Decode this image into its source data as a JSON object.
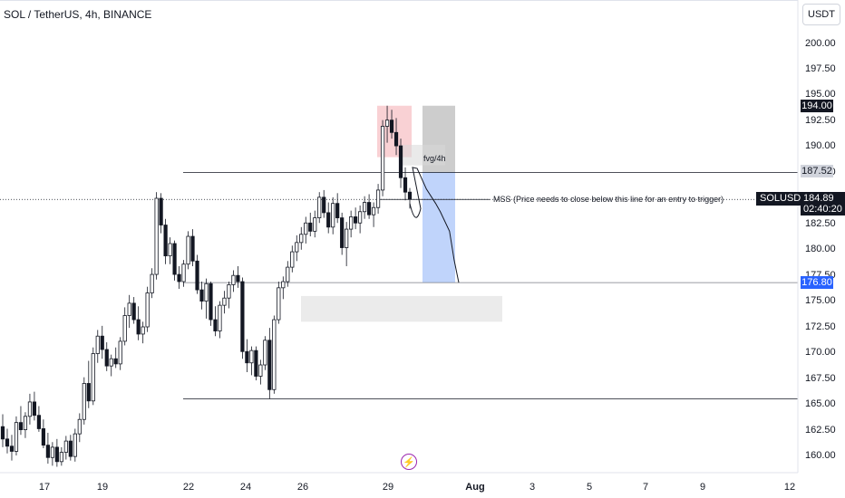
{
  "header": {
    "title": "SOL / TetherUS, 4h, BINANCE",
    "unit_button": "USDT"
  },
  "price_axis": {
    "ticks": [
      "200.00",
      "197.50",
      "195.00",
      "192.50",
      "190.00",
      "187.50",
      "185.00",
      "182.50",
      "180.00",
      "177.50",
      "175.00",
      "172.50",
      "170.00",
      "167.50",
      "165.00",
      "162.50",
      "160.00"
    ],
    "tag_194": "194.00",
    "tag_18752": "187.52",
    "tag_17680": "176.80",
    "current_symbol": "SOLUSDT",
    "current_price": "184.89",
    "countdown": "02:40:20"
  },
  "time_axis": {
    "ticks": [
      "17",
      "19",
      "22",
      "24",
      "26",
      "29",
      "Aug",
      "3",
      "5",
      "7",
      "9",
      "12"
    ]
  },
  "annotations": {
    "fvg": "fvg/4h",
    "mss": "MSS (Price needs to close below this line for an entry to trigger)"
  },
  "colors": {
    "up": "#ffffff",
    "down": "#131722",
    "red_zone": "#f8c9cd",
    "stop_zone": "#c8c8c8",
    "target_zone": "#b9cffb",
    "target_tag": "#2962ff",
    "gray_zone": "#ebebeb",
    "line": "#131722"
  },
  "chart_data": {
    "type": "candlestick",
    "symbol": "SOL / TetherUS",
    "interval": "4h",
    "exchange": "BINANCE",
    "ylim": [
      158.5,
      201.5
    ],
    "last_price": 184.89,
    "levels": [
      187.52,
      184.89,
      176.8,
      165.5
    ],
    "candles_ohlc": [
      [
        162.8,
        164.0,
        160.8,
        161.6
      ],
      [
        161.6,
        162.6,
        160.2,
        160.9
      ],
      [
        160.9,
        162.0,
        159.5,
        160.4
      ],
      [
        160.4,
        163.8,
        160.0,
        163.2
      ],
      [
        163.2,
        164.8,
        162.0,
        162.5
      ],
      [
        162.5,
        164.2,
        161.7,
        163.8
      ],
      [
        163.8,
        166.0,
        163.0,
        165.2
      ],
      [
        165.2,
        166.2,
        163.4,
        163.9
      ],
      [
        163.9,
        164.8,
        162.3,
        162.6
      ],
      [
        162.6,
        163.5,
        160.7,
        161.0
      ],
      [
        161.0,
        162.2,
        159.2,
        159.8
      ],
      [
        159.8,
        161.3,
        159.0,
        160.8
      ],
      [
        160.8,
        161.6,
        158.9,
        159.4
      ],
      [
        159.4,
        160.8,
        159.0,
        160.3
      ],
      [
        160.3,
        161.9,
        159.6,
        161.4
      ],
      [
        161.4,
        162.0,
        159.5,
        159.9
      ],
      [
        159.9,
        162.6,
        159.4,
        162.1
      ],
      [
        162.1,
        164.1,
        161.3,
        163.5
      ],
      [
        163.5,
        167.6,
        163.0,
        167.0
      ],
      [
        167.0,
        169.2,
        164.6,
        165.3
      ],
      [
        165.3,
        170.5,
        164.9,
        169.9
      ],
      [
        169.9,
        172.2,
        169.0,
        171.6
      ],
      [
        171.6,
        172.6,
        169.4,
        170.3
      ],
      [
        170.3,
        171.0,
        168.2,
        168.7
      ],
      [
        168.7,
        169.8,
        167.7,
        169.4
      ],
      [
        169.4,
        170.5,
        168.5,
        168.9
      ],
      [
        168.9,
        171.5,
        168.3,
        171.1
      ],
      [
        171.1,
        174.4,
        170.7,
        173.6
      ],
      [
        173.6,
        175.6,
        172.4,
        174.8
      ],
      [
        174.8,
        175.4,
        172.8,
        173.2
      ],
      [
        173.2,
        174.5,
        171.2,
        171.8
      ],
      [
        171.8,
        173.0,
        170.9,
        172.5
      ],
      [
        172.5,
        176.4,
        172.0,
        175.8
      ],
      [
        175.8,
        178.2,
        175.3,
        177.6
      ],
      [
        177.6,
        185.6,
        177.1,
        185.0
      ],
      [
        185.0,
        185.5,
        181.6,
        182.4
      ],
      [
        182.4,
        183.0,
        178.6,
        179.4
      ],
      [
        179.4,
        181.2,
        178.6,
        180.6
      ],
      [
        180.6,
        180.9,
        177.0,
        177.6
      ],
      [
        177.6,
        178.4,
        176.2,
        176.9
      ],
      [
        176.9,
        179.0,
        176.4,
        178.6
      ],
      [
        178.6,
        181.8,
        178.1,
        181.3
      ],
      [
        181.3,
        182.0,
        178.4,
        178.9
      ],
      [
        178.9,
        179.5,
        175.7,
        176.1
      ],
      [
        176.1,
        176.9,
        174.2,
        175.0
      ],
      [
        175.0,
        177.2,
        173.3,
        176.7
      ],
      [
        176.7,
        176.9,
        172.6,
        173.2
      ],
      [
        173.2,
        174.5,
        171.6,
        172.1
      ],
      [
        172.1,
        175.0,
        171.4,
        174.6
      ],
      [
        174.6,
        176.0,
        173.8,
        175.3
      ],
      [
        175.3,
        176.9,
        174.3,
        176.6
      ],
      [
        176.6,
        178.0,
        175.9,
        177.5
      ],
      [
        177.5,
        178.4,
        176.3,
        176.9
      ],
      [
        176.9,
        177.3,
        169.4,
        170.1
      ],
      [
        170.1,
        171.3,
        168.1,
        169.0
      ],
      [
        169.0,
        170.6,
        167.8,
        170.2
      ],
      [
        170.2,
        170.6,
        167.3,
        167.7
      ],
      [
        167.7,
        169.3,
        166.9,
        168.8
      ],
      [
        168.8,
        171.6,
        168.3,
        171.2
      ],
      [
        171.2,
        172.4,
        165.5,
        166.4
      ],
      [
        166.4,
        173.6,
        166.0,
        173.2
      ],
      [
        173.2,
        176.9,
        172.8,
        176.3
      ],
      [
        176.3,
        177.4,
        175.2,
        176.9
      ],
      [
        176.9,
        178.9,
        176.4,
        178.3
      ],
      [
        178.3,
        180.4,
        177.8,
        179.8
      ],
      [
        179.8,
        181.4,
        178.9,
        180.7
      ],
      [
        180.7,
        182.2,
        180.0,
        181.5
      ],
      [
        181.5,
        183.2,
        180.6,
        182.6
      ],
      [
        182.6,
        183.6,
        181.3,
        181.8
      ],
      [
        181.8,
        183.8,
        181.2,
        183.1
      ],
      [
        183.1,
        185.6,
        182.6,
        185.1
      ],
      [
        185.1,
        185.8,
        183.1,
        183.6
      ],
      [
        183.6,
        184.6,
        181.6,
        182.2
      ],
      [
        182.2,
        185.1,
        181.5,
        184.5
      ],
      [
        184.5,
        185.5,
        182.6,
        183.1
      ],
      [
        183.1,
        183.6,
        179.5,
        180.2
      ],
      [
        180.2,
        182.7,
        178.4,
        182.0
      ],
      [
        182.0,
        183.8,
        181.2,
        183.2
      ],
      [
        183.2,
        184.1,
        182.0,
        182.6
      ],
      [
        182.6,
        184.3,
        181.6,
        183.7
      ],
      [
        183.7,
        185.2,
        183.0,
        184.6
      ],
      [
        184.6,
        185.4,
        183.0,
        183.4
      ],
      [
        183.4,
        184.6,
        182.2,
        184.1
      ],
      [
        184.1,
        186.4,
        183.5,
        185.8
      ],
      [
        185.8,
        192.6,
        185.2,
        192.0
      ],
      [
        192.0,
        194.0,
        190.4,
        192.6
      ],
      [
        192.6,
        193.6,
        190.8,
        191.4
      ],
      [
        191.4,
        192.8,
        189.2,
        190.1
      ],
      [
        190.1,
        190.8,
        186.0,
        187.0
      ],
      [
        187.0,
        188.0,
        184.8,
        185.6
      ],
      [
        185.6,
        186.0,
        184.0,
        184.9
      ]
    ],
    "projection": [
      [
        188.0,
        0
      ],
      [
        187.9,
        1
      ],
      [
        185.9,
        3
      ],
      [
        184.5,
        5
      ],
      [
        183.7,
        6
      ],
      [
        181.8,
        8
      ],
      [
        179.0,
        9
      ],
      [
        176.8,
        10
      ]
    ],
    "zones": [
      {
        "name": "red",
        "y": [
          189.0,
          194.0
        ]
      },
      {
        "name": "stop",
        "y": [
          187.52,
          194.0
        ]
      },
      {
        "name": "fvg",
        "y": [
          188.2,
          190.2
        ]
      },
      {
        "name": "target",
        "y": [
          176.8,
          187.52
        ]
      },
      {
        "name": "gray",
        "y": [
          173.0,
          175.5
        ]
      }
    ]
  }
}
